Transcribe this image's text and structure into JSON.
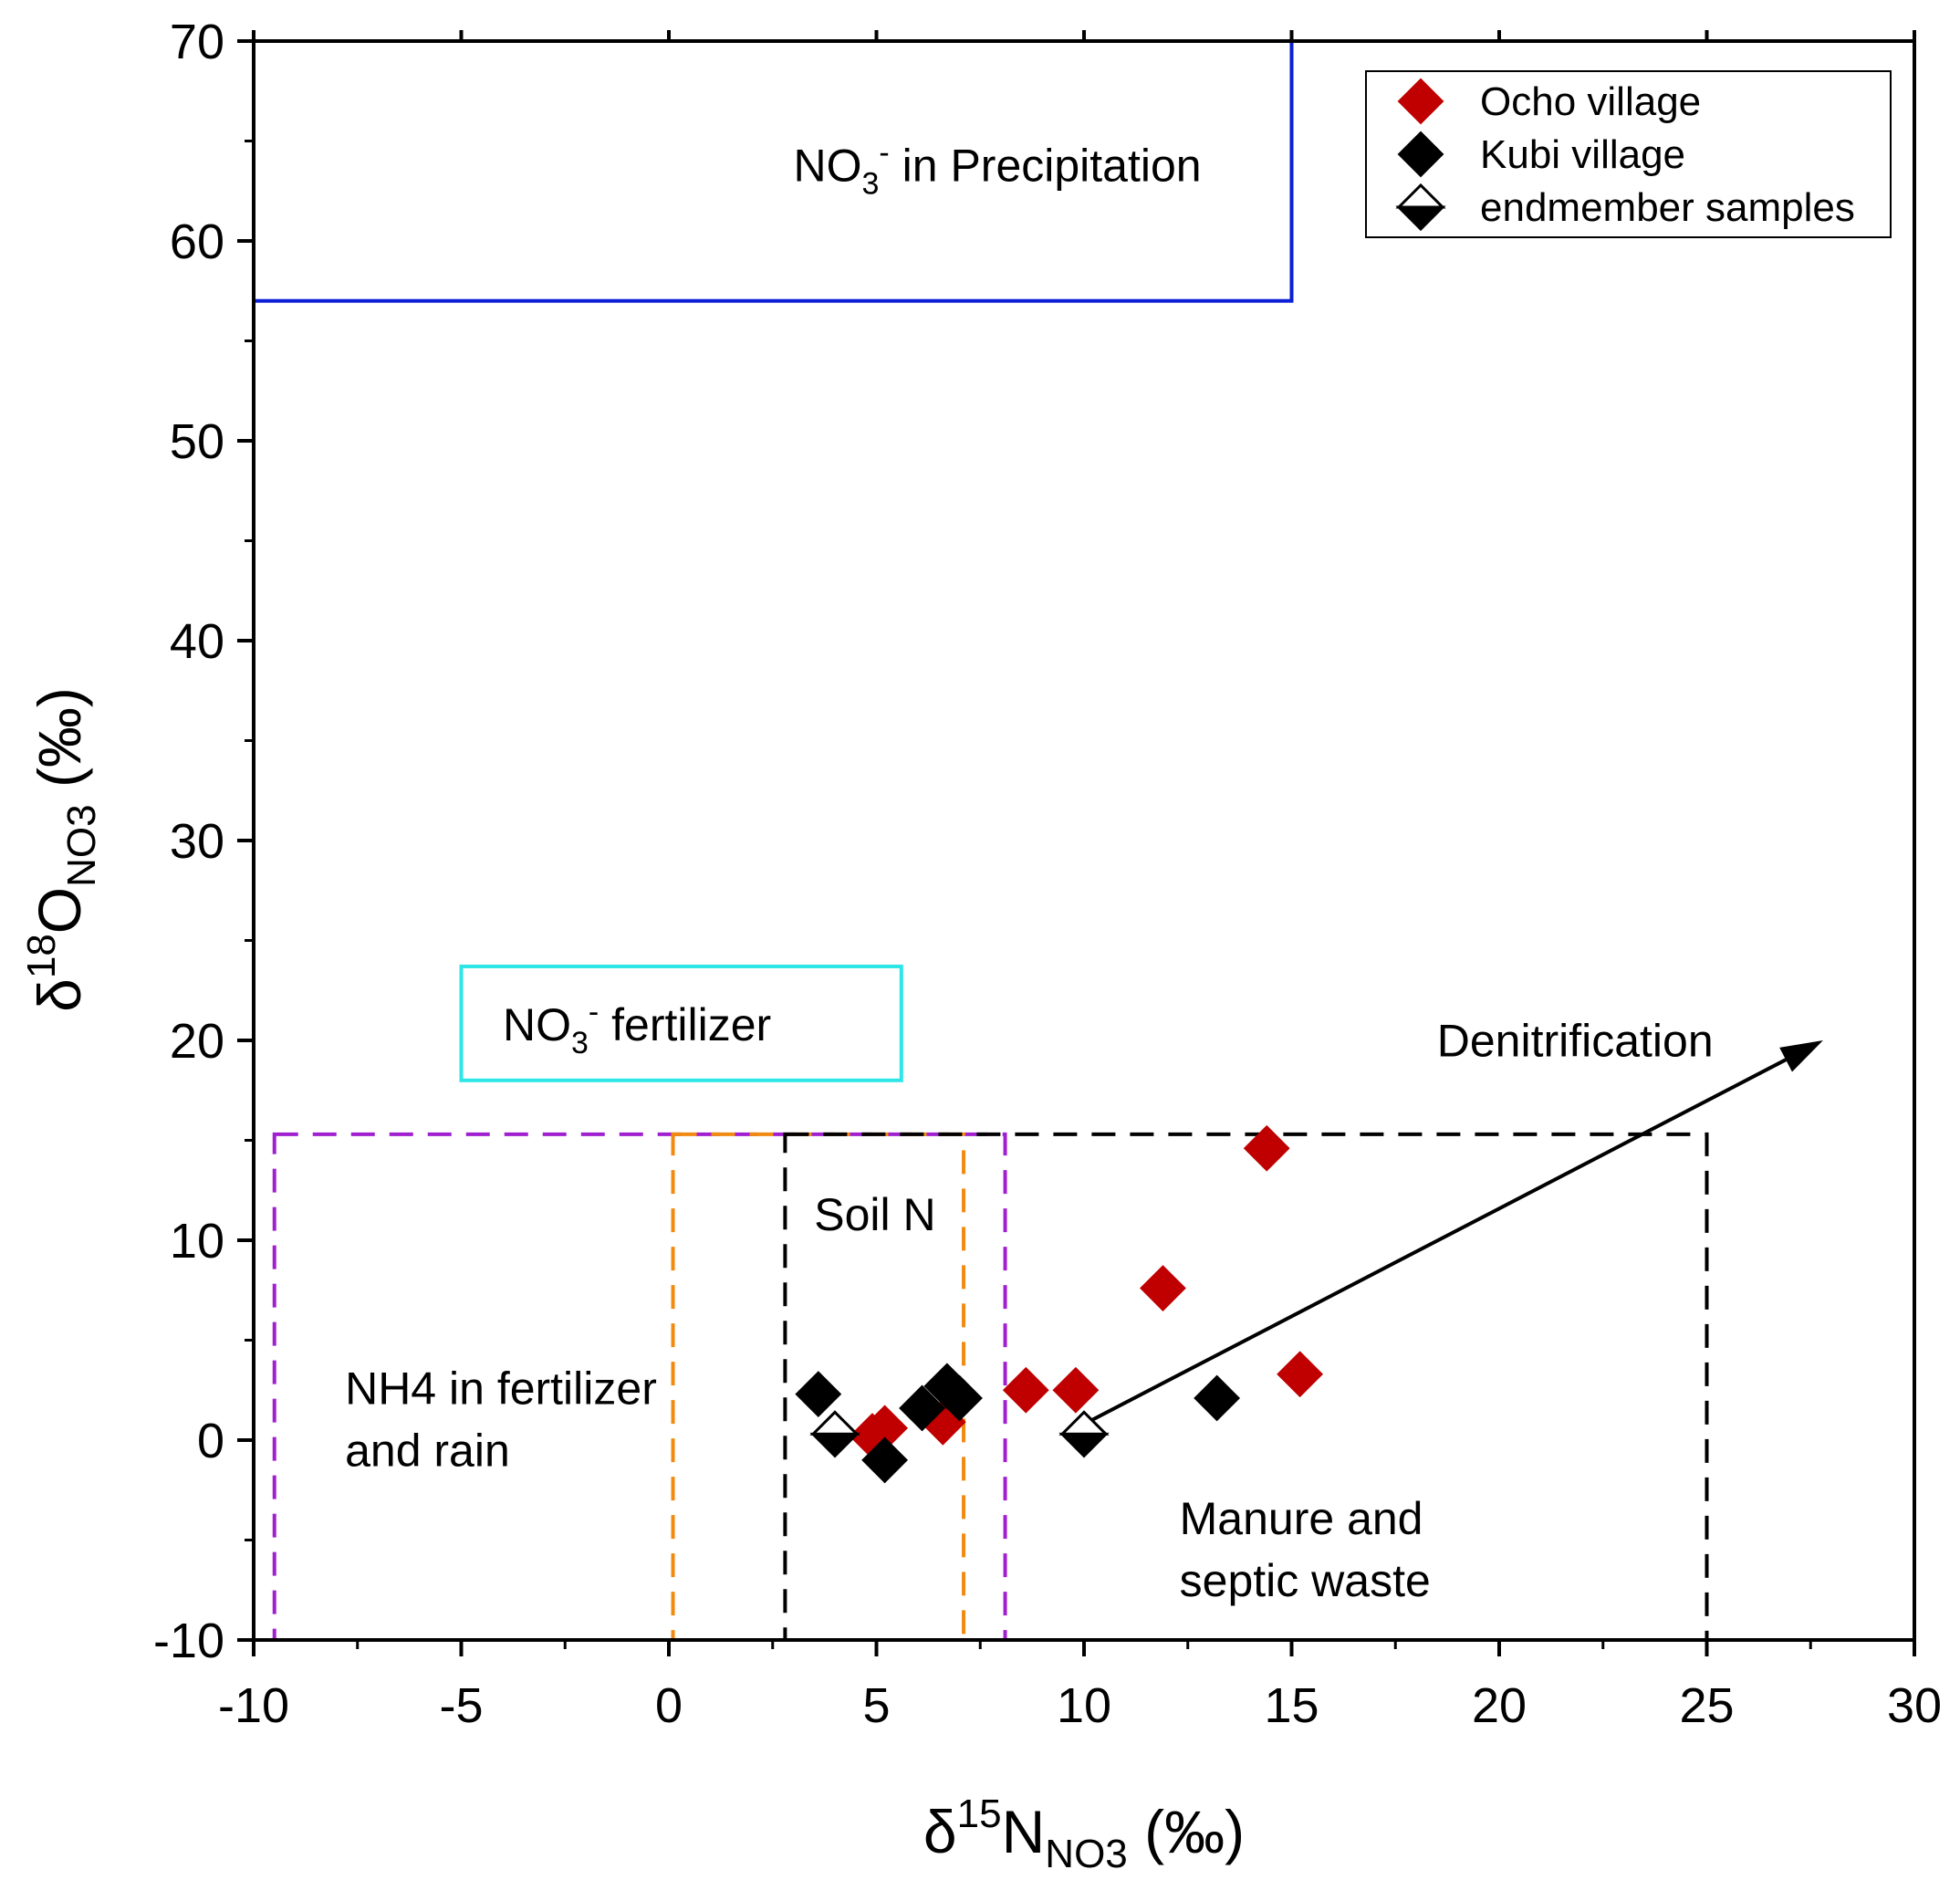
{
  "chart_data": {
    "type": "scatter",
    "xlabel": {
      "main": "δ",
      "sup": "15",
      "base": "N",
      "sub": "NO3",
      "unit": " (‰)"
    },
    "ylabel": {
      "main": "δ",
      "sup": "18",
      "base": "O",
      "sub": "NO3",
      "unit": " (‰)"
    },
    "xlim": [
      -10,
      30
    ],
    "ylim": [
      -10,
      70
    ],
    "xticks": [
      -10,
      -5,
      0,
      5,
      10,
      15,
      20,
      25,
      30
    ],
    "yticks": [
      -10,
      0,
      10,
      20,
      30,
      40,
      50,
      60,
      70
    ],
    "xtick_labels": [
      "-10",
      "-5",
      "0",
      "5",
      "10",
      "15",
      "20",
      "25",
      "30"
    ],
    "ytick_labels": [
      "-10",
      "0",
      "10",
      "20",
      "30",
      "40",
      "50",
      "60",
      "70"
    ],
    "series": [
      {
        "name": "Ocho village",
        "color": "#c00000",
        "marker": "diamond-filled",
        "points": [
          [
            4.9,
            0.2
          ],
          [
            5.2,
            0.6
          ],
          [
            6.6,
            0.9
          ],
          [
            8.6,
            2.5
          ],
          [
            9.8,
            2.5
          ],
          [
            11.9,
            7.6
          ],
          [
            14.4,
            14.6
          ],
          [
            15.2,
            3.3
          ]
        ]
      },
      {
        "name": "Kubi village",
        "color": "#000000",
        "marker": "diamond-filled",
        "points": [
          [
            3.6,
            2.3
          ],
          [
            5.2,
            -1.0
          ],
          [
            6.1,
            1.6
          ],
          [
            6.7,
            2.7
          ],
          [
            7.0,
            2.1
          ],
          [
            13.2,
            2.1
          ]
        ]
      },
      {
        "name": "endmember samples",
        "color": "#000000",
        "marker": "diamond-half",
        "points": [
          [
            4.0,
            0.3
          ],
          [
            10.0,
            0.3
          ]
        ]
      }
    ],
    "regions": [
      {
        "name": "precipitation",
        "label_main": "NO",
        "label_sub": "3",
        "label_sup": "-",
        "label_rest": "  in Precipitation",
        "x": [
          -10,
          15
        ],
        "y": [
          57,
          70
        ],
        "color": "#0a1fd6",
        "style": "solid",
        "label_at": [
          3,
          63
        ]
      },
      {
        "name": "no3-fertilizer",
        "label_main": "NO",
        "label_sub": "3",
        "label_sup": "-",
        "label_rest": " fertilizer",
        "x": [
          -5,
          5.6
        ],
        "y": [
          18,
          23.7
        ],
        "color": "#2ee6e6",
        "style": "solid",
        "label_at": [
          -4,
          20
        ]
      },
      {
        "name": "nh4-fertilizer",
        "label_lines": [
          "NH4 in fertilizer",
          " and rain"
        ],
        "x": [
          -9.5,
          8.1
        ],
        "y": [
          -10,
          15.3
        ],
        "color": "#a020d0",
        "style": "dashed",
        "label_at": [
          -7.8,
          1.8
        ]
      },
      {
        "name": "soil-n",
        "label_lines": [
          "Soil N"
        ],
        "x": [
          0.1,
          7.1
        ],
        "y": [
          -10,
          15.3
        ],
        "color": "#f08a10",
        "style": "dashed",
        "label_at": [
          3.5,
          10.5
        ]
      },
      {
        "name": "manure",
        "label_lines": [
          "Manure and",
          "septic waste"
        ],
        "x": [
          2.8,
          25
        ],
        "y": [
          -10,
          15.3
        ],
        "color": "#000000",
        "style": "dashed",
        "label_at": [
          12.3,
          -4.7
        ]
      }
    ],
    "annotation": {
      "text": "Denitrification",
      "arrow_from": [
        10,
        0.8
      ],
      "arrow_to": [
        27.8,
        20
      ],
      "label_at": [
        18.5,
        19.2
      ]
    },
    "legend_position": "top-right"
  }
}
